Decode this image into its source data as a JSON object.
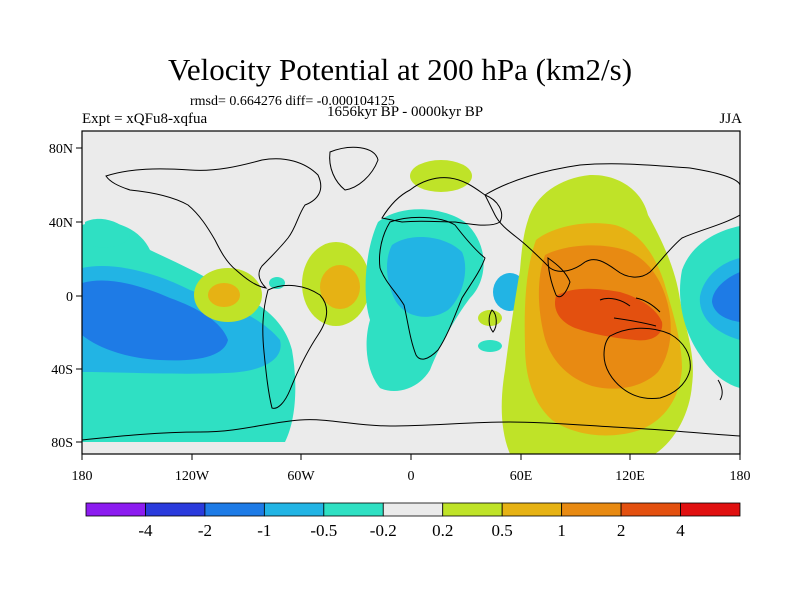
{
  "header": {
    "title": "Velocity Potential at 200 hPa (km2/s)",
    "stats": "rmsd= 0.664276 diff= -0.000104125",
    "left_label": "Expt = xQFu8-xqfua",
    "center_label": "1656kyr BP - 0000kyr BP",
    "right_label": "JJA"
  },
  "axes": {
    "lat_ticks": [
      "80N",
      "40N",
      "0",
      "40S",
      "80S"
    ],
    "lon_ticks": [
      "180",
      "120W",
      "60W",
      "0",
      "60E",
      "120E",
      "180"
    ]
  },
  "colorbar": {
    "colors": [
      "#8c1cf0",
      "#2a3bdc",
      "#1e7be6",
      "#22b4e4",
      "#2fe0c3",
      "#ebebeb",
      "#bfe328",
      "#e6b214",
      "#e88a12",
      "#e3500f",
      "#e01010"
    ],
    "labels": [
      "-4",
      "-2",
      "-1",
      "-0.5",
      "-0.2",
      "0.2",
      "0.5",
      "1",
      "2",
      "4"
    ]
  }
}
